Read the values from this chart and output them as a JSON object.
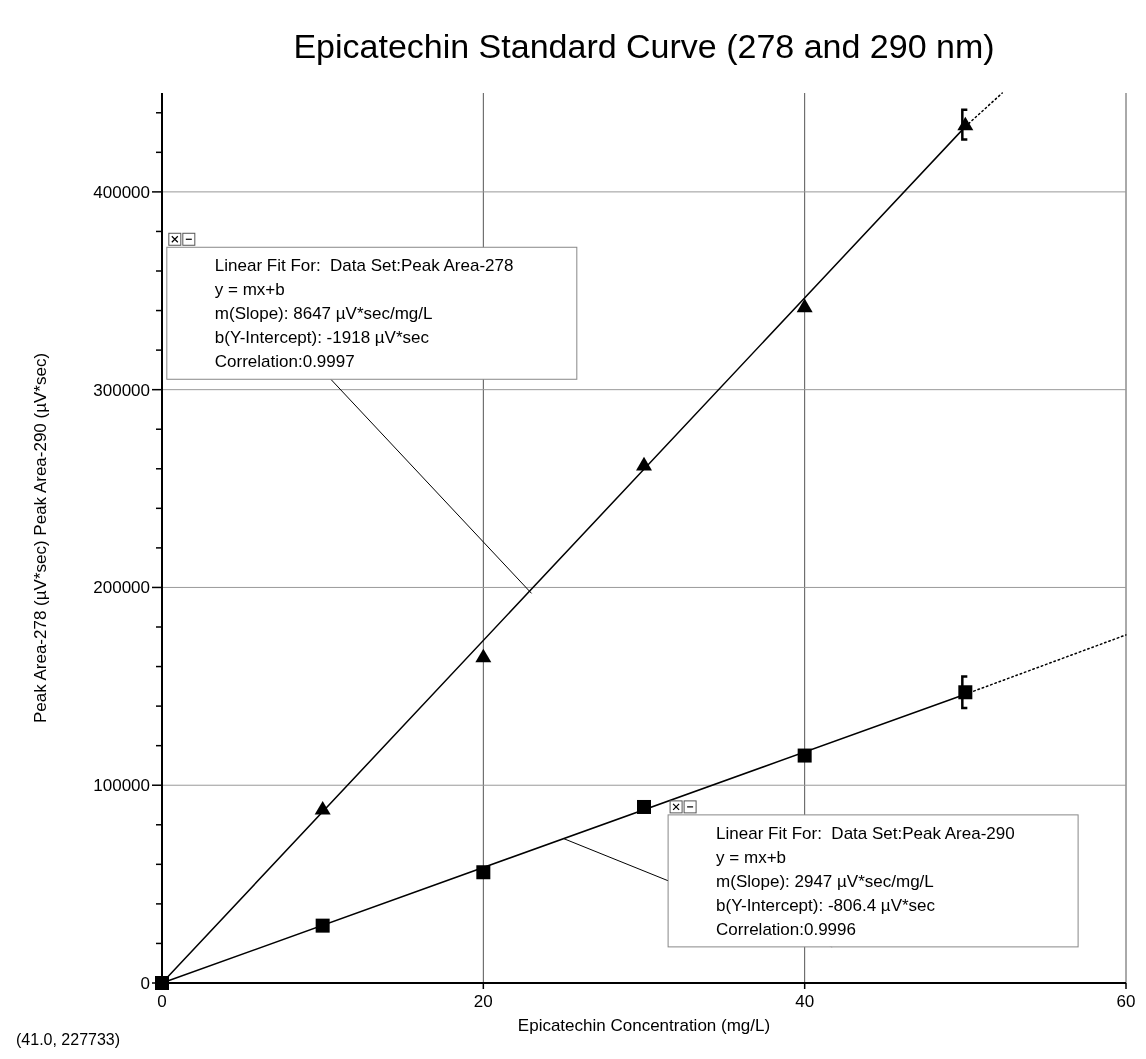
{
  "chart_data": {
    "type": "scatter",
    "title": "Epicatechin Standard Curve (278 and 290 nm)",
    "xlabel": "Epicatechin Concentration (mg/L)",
    "ylabel": "Peak Area-278 (µV*sec)   Peak Area-290 (µV*sec)",
    "xlim": [
      0,
      60
    ],
    "xticks": [
      0,
      20,
      40,
      60
    ],
    "ylim": [
      0,
      450000
    ],
    "yticks": [
      0,
      {
        "value": 20000,
        "label": null
      },
      {
        "value": 40000,
        "label": null
      },
      {
        "value": 60000,
        "label": null
      },
      {
        "value": 80000,
        "label": null
      },
      100000,
      {
        "value": 120000,
        "label": null
      },
      {
        "value": 140000,
        "label": null
      },
      {
        "value": 160000,
        "label": null
      },
      {
        "value": 180000,
        "label": null
      },
      200000,
      {
        "value": 220000,
        "label": null
      },
      {
        "value": 240000,
        "label": null
      },
      {
        "value": 260000,
        "label": null
      },
      {
        "value": 280000,
        "label": null
      },
      300000,
      {
        "value": 320000,
        "label": null
      },
      {
        "value": 340000,
        "label": null
      },
      {
        "value": 360000,
        "label": null
      },
      {
        "value": 380000,
        "label": null
      },
      400000,
      {
        "value": 420000,
        "label": null
      },
      {
        "value": 440000,
        "label": null
      }
    ],
    "grid": true,
    "series": [
      {
        "type": "line",
        "color": "#000000",
        "x": [
          0,
          50
        ],
        "values": [
          0,
          433000
        ],
        "line_style": "solid",
        "marker": "none"
      },
      {
        "type": "line",
        "color": "#000000",
        "x": [
          50,
          52.3
        ],
        "values": [
          433000,
          450000
        ],
        "line_style": "dotted",
        "marker": "none"
      },
      {
        "type": "line",
        "color": "#000000",
        "x": [
          0,
          50
        ],
        "values": [
          0,
          146000
        ],
        "line_style": "solid",
        "marker": "none"
      },
      {
        "type": "line",
        "color": "#000000",
        "x": [
          50,
          60
        ],
        "values": [
          146000,
          176000
        ],
        "line_style": "dotted",
        "marker": "none"
      },
      {
        "color": "#000000",
        "marker": "triangle",
        "x": [
          10,
          20,
          30,
          40,
          50
        ],
        "values": [
          88000,
          165000,
          262000,
          342000,
          434000
        ],
        "errors": [
          null,
          null,
          null,
          null,
          7500
        ]
      },
      {
        "color": "#000000",
        "marker": "square",
        "x": [
          0,
          10,
          20,
          30,
          40,
          50
        ],
        "values": [
          0,
          29000,
          56000,
          89000,
          115000,
          147000
        ],
        "errors": [
          null,
          null,
          null,
          null,
          null,
          8000
        ]
      }
    ],
    "annotations": [
      {
        "text": "Linear Fit For:  Data Set:Peak Area-278\ny = mx+b\nm(Slope): 8647 µV*sec/mg/L\nb(Y-Intercept): -1918 µV*sec\nCorrelation:0.9997",
        "x": 23,
        "y": 197000
      },
      {
        "text": "Linear Fit For:  Data Set:Peak Area-290\ny = mx+b\nm(Slope): 2947 µV*sec/mg/L\nb(Y-Intercept): -806.4 µV*sec\nCorrelation:0.9996",
        "x": 25,
        "y": 73000
      },
      "(41.0, 227733)"
    ]
  }
}
